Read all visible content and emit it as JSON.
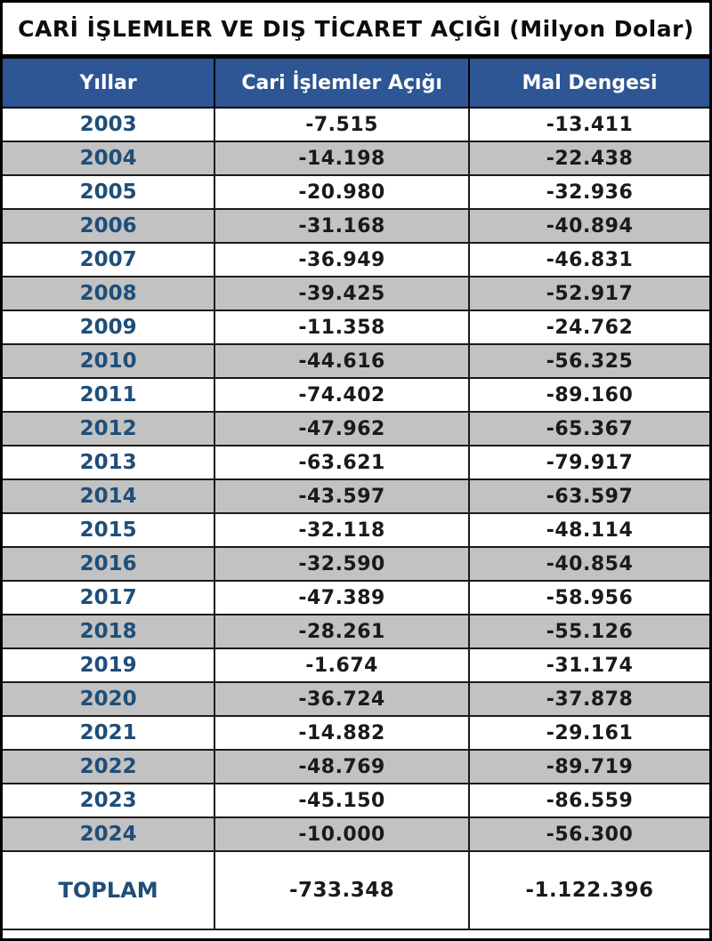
{
  "title": "CARİ İŞLEMLER VE DIŞ TİCARET AÇIĞI (Milyon Dolar)",
  "colors": {
    "header_bg": "#2E5594",
    "header_text": "#FFFFFF",
    "year_text": "#1F4E79",
    "alt_row_bg": "#C2C2C2",
    "value_text": "#1A1A1A",
    "border": "#000000"
  },
  "chart_data": {
    "type": "table",
    "title": "CARİ İŞLEMLER VE DIŞ TİCARET AÇIĞI (Milyon Dolar)",
    "units": "Milyon Dolar",
    "columns": [
      "Yıllar",
      "Cari İşlemler Açığı",
      "Mal Dengesi"
    ],
    "rows": [
      {
        "year": "2003",
        "cari": "-7.515",
        "mal": "-13.411"
      },
      {
        "year": "2004",
        "cari": "-14.198",
        "mal": "-22.438"
      },
      {
        "year": "2005",
        "cari": "-20.980",
        "mal": "-32.936"
      },
      {
        "year": "2006",
        "cari": "-31.168",
        "mal": "-40.894"
      },
      {
        "year": "2007",
        "cari": "-36.949",
        "mal": "-46.831"
      },
      {
        "year": "2008",
        "cari": "-39.425",
        "mal": "-52.917"
      },
      {
        "year": "2009",
        "cari": "-11.358",
        "mal": "-24.762"
      },
      {
        "year": "2010",
        "cari": "-44.616",
        "mal": "-56.325"
      },
      {
        "year": "2011",
        "cari": "-74.402",
        "mal": "-89.160"
      },
      {
        "year": "2012",
        "cari": "-47.962",
        "mal": "-65.367"
      },
      {
        "year": "2013",
        "cari": "-63.621",
        "mal": "-79.917"
      },
      {
        "year": "2014",
        "cari": "-43.597",
        "mal": "-63.597"
      },
      {
        "year": "2015",
        "cari": "-32.118",
        "mal": "-48.114"
      },
      {
        "year": "2016",
        "cari": "-32.590",
        "mal": "-40.854"
      },
      {
        "year": "2017",
        "cari": "-47.389",
        "mal": "-58.956"
      },
      {
        "year": "2018",
        "cari": "-28.261",
        "mal": "-55.126"
      },
      {
        "year": "2019",
        "cari": "-1.674",
        "mal": "-31.174"
      },
      {
        "year": "2020",
        "cari": "-36.724",
        "mal": "-37.878"
      },
      {
        "year": "2021",
        "cari": "-14.882",
        "mal": "-29.161"
      },
      {
        "year": "2022",
        "cari": "-48.769",
        "mal": "-89.719"
      },
      {
        "year": "2023",
        "cari": "-45.150",
        "mal": "-86.559"
      },
      {
        "year": "2024",
        "cari": "-10.000",
        "mal": "-56.300"
      }
    ],
    "total": {
      "label": "TOPLAM",
      "cari": "-733.348",
      "mal": "-1.122.396"
    }
  }
}
